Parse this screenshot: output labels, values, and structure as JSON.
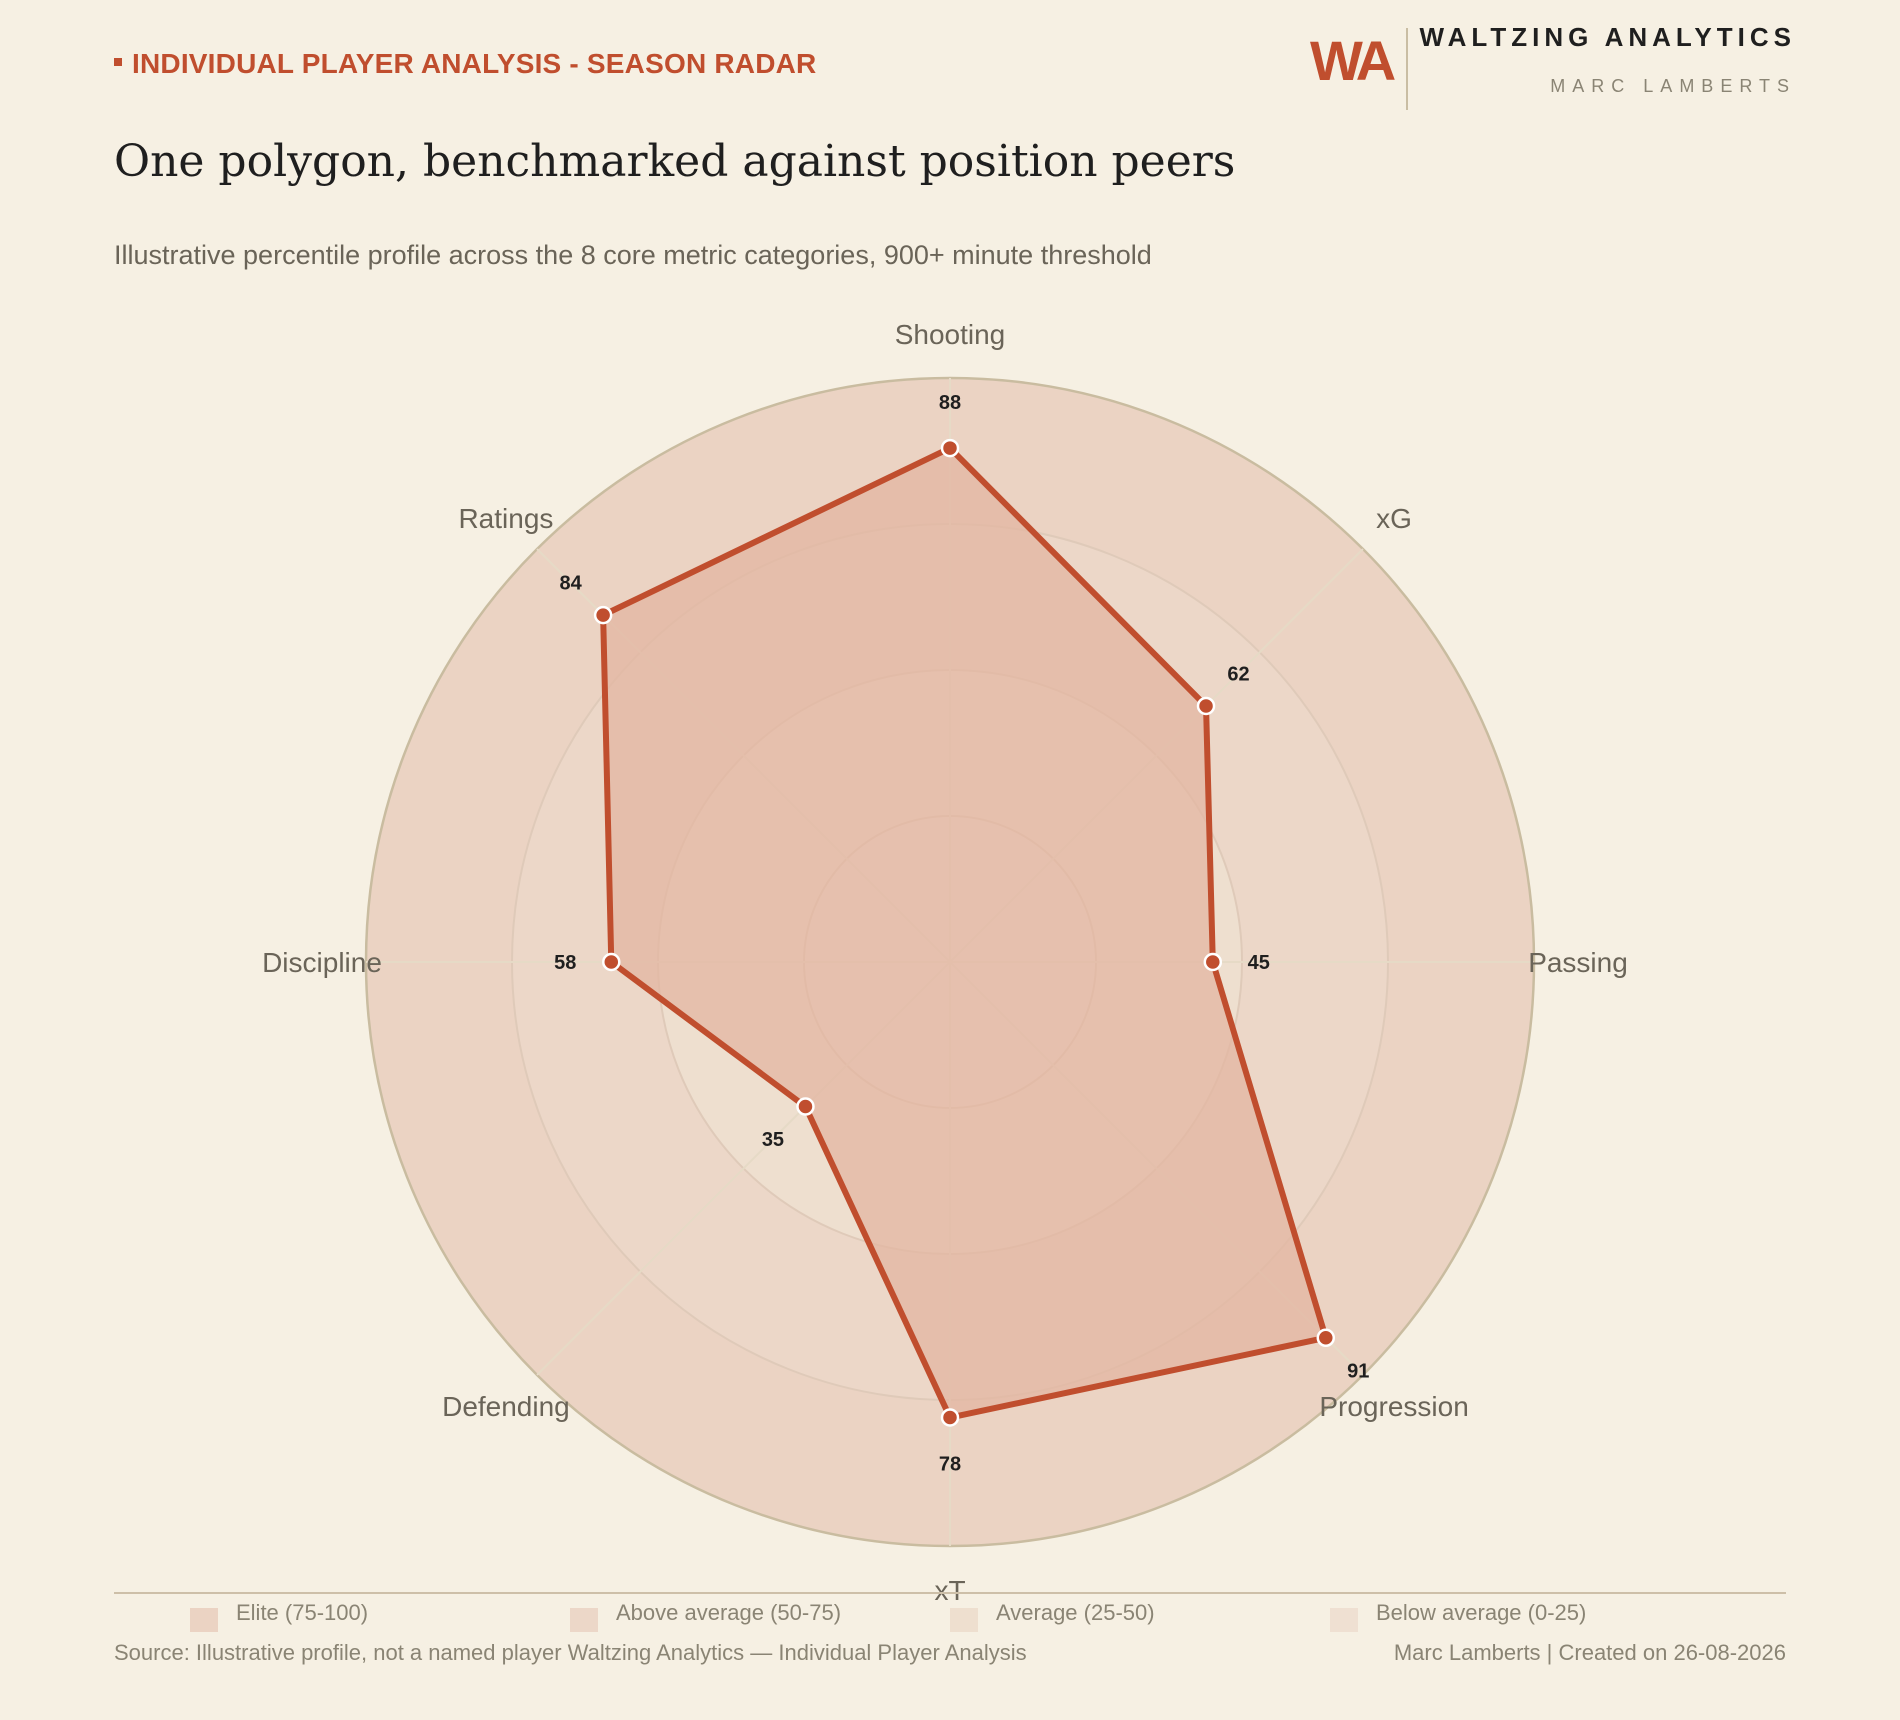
{
  "header": {
    "eyebrow": "INDIVIDUAL PLAYER ANALYSIS - SEASON RADAR",
    "title": "One polygon, benchmarked against position peers",
    "subtitle": "Illustrative percentile profile across the 8 core metric categories, 900+ minute threshold",
    "logo": "WA",
    "brand": "WALTZING ANALYTICS",
    "author": "MARC LAMBERTS"
  },
  "colors": {
    "accent": "#c04e2e",
    "background": "#f6f0e3",
    "band_elite": "#ebd3c3",
    "band_above": "#ecd7c8",
    "band_average": "#eedfcf",
    "band_below": "#efe0d2",
    "fill": "#e3b6a1",
    "grid": "#dfcab9",
    "outline": "#c9bca0"
  },
  "chart_data": {
    "type": "radar",
    "categories": [
      "Shooting",
      "xG",
      "Passing",
      "Progression",
      "xT",
      "Defending",
      "Discipline",
      "Ratings"
    ],
    "values": [
      88,
      62,
      45,
      91,
      78,
      35,
      58,
      84
    ],
    "rlim": [
      0,
      100
    ],
    "rings": [
      25,
      50,
      75,
      100
    ],
    "bands": [
      {
        "label": "Elite (75-100)",
        "from": 75,
        "to": 100
      },
      {
        "label": "Above average (50-75)",
        "from": 50,
        "to": 75
      },
      {
        "label": "Average (25-50)",
        "from": 25,
        "to": 50
      },
      {
        "label": "Below average (0-25)",
        "from": 0,
        "to": 25
      }
    ],
    "legend_position": "bottom"
  },
  "footer": {
    "source": "Source: Illustrative profile, not a named player   Waltzing Analytics — Individual Player Analysis",
    "credit": "Marc Lamberts | Created on 26-08-2026"
  }
}
